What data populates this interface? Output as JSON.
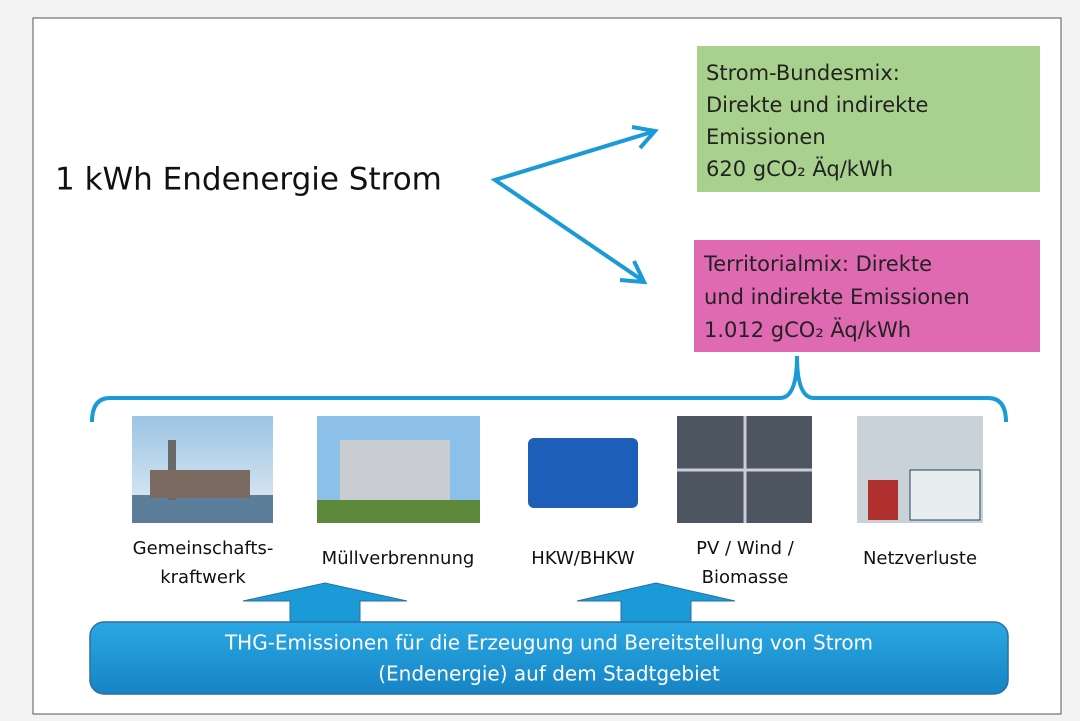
{
  "heading": "1 kWh Endenergie Strom",
  "green_box": {
    "lines": [
      "Strom-Bundesmix:",
      "Direkte und indirekte",
      "Emissionen",
      "620 gCO₂ Äq/kWh"
    ]
  },
  "pink_box": {
    "lines": [
      "Territorialmix: Direkte",
      "und indirekte Emissionen",
      "1.012 gCO₂ Äq/kWh"
    ]
  },
  "sources": [
    {
      "lines": [
        "Gemeinschafts-",
        "kraftwerk"
      ]
    },
    {
      "lines": [
        "Müllverbrennung"
      ]
    },
    {
      "lines": [
        "HKW/BHKW"
      ]
    },
    {
      "lines": [
        "PV / Wind /",
        "Biomasse"
      ]
    },
    {
      "lines": [
        "Netzverluste"
      ]
    }
  ],
  "bottom_box": {
    "lines": [
      "THG-Emissionen für die Erzeugung und Bereitstellung von Strom",
      "(Endenergie) auf dem Stadtgebiet"
    ]
  }
}
